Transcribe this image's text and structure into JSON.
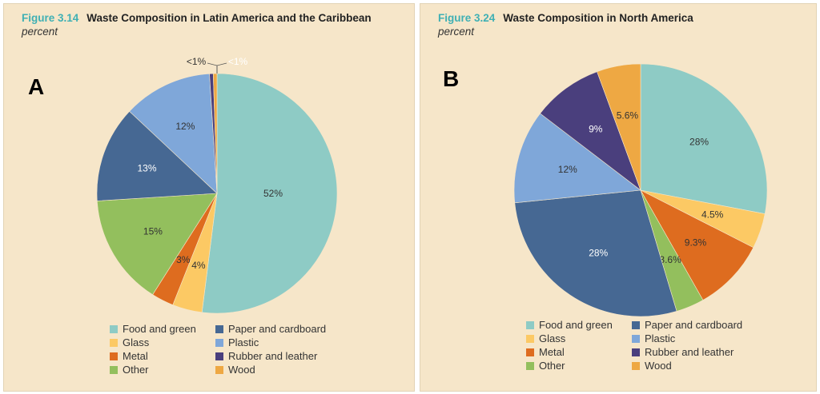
{
  "categories": [
    "Food and green",
    "Glass",
    "Metal",
    "Other",
    "Paper and cardboard",
    "Plastic",
    "Rubber and leather",
    "Wood"
  ],
  "colors": {
    "Food and green": "#8ecbc5",
    "Paper and cardboard": "#466893",
    "Glass": "#fcc964",
    "Plastic": "#7fa7d9",
    "Metal": "#de6c1f",
    "Rubber and leather": "#4a3f7d",
    "Other": "#93bf5d",
    "Wood": "#eea843"
  },
  "legend_order": [
    "Food and green",
    "Paper and cardboard",
    "Glass",
    "Plastic",
    "Metal",
    "Rubber and leather",
    "Other",
    "Wood"
  ],
  "chart_data": [
    {
      "type": "pie",
      "panel_letter": "A",
      "figure_number": "Figure 3.14",
      "title": "Waste Composition in Latin America and the Caribbean",
      "subtitle": "percent",
      "legend_placement": "bottom",
      "slices": [
        {
          "name": "Food and green",
          "value": 52,
          "label": "52%"
        },
        {
          "name": "Glass",
          "value": 4,
          "label": "4%"
        },
        {
          "name": "Metal",
          "value": 3,
          "label": "3%"
        },
        {
          "name": "Other",
          "value": 15,
          "label": "15%"
        },
        {
          "name": "Paper and cardboard",
          "value": 13,
          "label": "13%"
        },
        {
          "name": "Plastic",
          "value": 12,
          "label": "12%"
        },
        {
          "name": "Rubber and leather",
          "value": 0.5,
          "label": "<1%"
        },
        {
          "name": "Wood",
          "value": 0.5,
          "label": "<1%"
        }
      ]
    },
    {
      "type": "pie",
      "panel_letter": "B",
      "figure_number": "Figure 3.24",
      "title": "Waste Composition in North America",
      "subtitle": "percent",
      "legend_placement": "bottom",
      "slices": [
        {
          "name": "Food and green",
          "value": 28,
          "label": "28%"
        },
        {
          "name": "Glass",
          "value": 4.5,
          "label": "4.5%"
        },
        {
          "name": "Metal",
          "value": 9.3,
          "label": "9.3%"
        },
        {
          "name": "Other",
          "value": 3.6,
          "label": "3.6%"
        },
        {
          "name": "Paper and cardboard",
          "value": 28,
          "label": "28%"
        },
        {
          "name": "Plastic",
          "value": 12,
          "label": "12%"
        },
        {
          "name": "Rubber and leather",
          "value": 9,
          "label": "9%"
        },
        {
          "name": "Wood",
          "value": 5.6,
          "label": "5.6%"
        }
      ]
    }
  ]
}
